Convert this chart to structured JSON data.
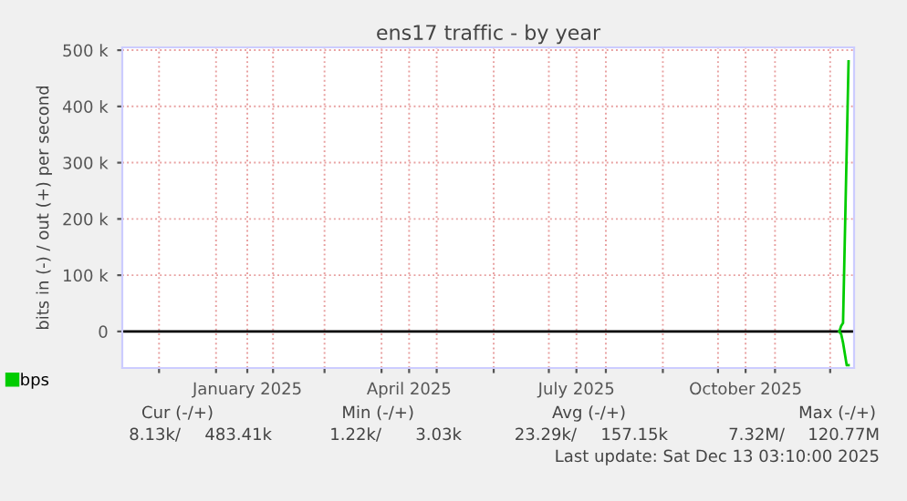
{
  "chart_data": {
    "type": "line",
    "title": "ens17 traffic - by year",
    "ylabel": "bits in (-) / out (+) per second",
    "series": [
      {
        "name": "bps",
        "color": "#00cc00",
        "x": [
          "2025-12-06",
          "2025-12-07",
          "2025-12-08",
          "2025-12-11"
        ],
        "values": [
          0,
          10000,
          15000,
          480000
        ]
      },
      {
        "color": "#00cc00",
        "x": [
          "2025-12-06",
          "2025-12-07",
          "2025-12-08",
          "2025-12-10",
          "2025-12-11"
        ],
        "values": [
          0,
          -5000,
          -20000,
          -60000,
          -60000
        ]
      }
    ],
    "xlim": [
      "2024-11-11",
      "2025-12-14"
    ],
    "xticks": [
      {
        "value": "2024-12-01",
        "label": null
      },
      {
        "value": "2025-01-01",
        "label": null
      },
      {
        "value": "2025-01-18",
        "label": "January 2025"
      },
      {
        "value": "2025-02-01",
        "label": null
      },
      {
        "value": "2025-03-01",
        "label": null
      },
      {
        "value": "2025-04-01",
        "label": null
      },
      {
        "value": "2025-04-16",
        "label": "April 2025"
      },
      {
        "value": "2025-05-01",
        "label": null
      },
      {
        "value": "2025-06-01",
        "label": null
      },
      {
        "value": "2025-07-01",
        "label": null
      },
      {
        "value": "2025-07-16",
        "label": "July 2025"
      },
      {
        "value": "2025-08-01",
        "label": null
      },
      {
        "value": "2025-09-01",
        "label": null
      },
      {
        "value": "2025-10-01",
        "label": null
      },
      {
        "value": "2025-10-16",
        "label": "October 2025"
      },
      {
        "value": "2025-11-01",
        "label": null
      },
      {
        "value": "2025-12-01",
        "label": null
      }
    ],
    "ylim": [
      -65000,
      505000
    ],
    "yticks": [
      0,
      {
        "value": 100000,
        "label": "100 k"
      },
      {
        "value": 200000,
        "label": "200 k"
      },
      {
        "value": 300000,
        "label": "300 k"
      },
      {
        "value": 400000,
        "label": "400 k"
      },
      {
        "value": 500000,
        "label": "500 k"
      }
    ],
    "ref_lines": [
      {
        "axis": "y",
        "value": 0,
        "color": "#000000"
      }
    ],
    "grid": true,
    "legend": "bottom left",
    "marker": "none",
    "line_style": "solid",
    "annotations": [
      "Cur (-/+)",
      "Min (-/+)",
      "Avg (-/+)",
      "Max (-/+)",
      "8.13k/",
      "483.41k",
      "1.22k/",
      "3.03k",
      "23.29k/",
      "157.15k",
      "7.32M/",
      "120.77M",
      "Last update: Sat Dec 13 03:10:00 2025"
    ]
  }
}
